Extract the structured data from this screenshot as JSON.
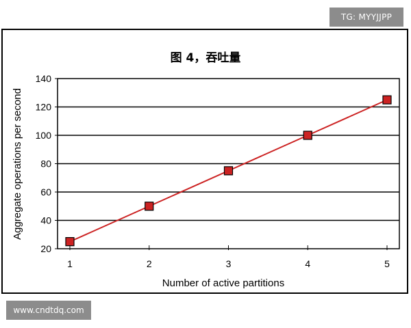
{
  "watermarks": {
    "top_right": "TG: MYYJJPP",
    "bottom_left": "www.cndtdq.com"
  },
  "chart_data": {
    "type": "line",
    "title": "图 4，吞吐量",
    "xlabel": "Number of active partitions",
    "ylabel": "Aggregate operations per second",
    "x": [
      1,
      2,
      3,
      4,
      5
    ],
    "series": [
      {
        "values": [
          25,
          50,
          75,
          100,
          125
        ],
        "color": "#cc2222",
        "marker": "square"
      }
    ],
    "xlim": [
      1,
      5
    ],
    "ylim": [
      20,
      140
    ],
    "yticks": [
      20,
      40,
      60,
      80,
      100,
      120,
      140
    ],
    "xticks": [
      1,
      2,
      3,
      4,
      5
    ],
    "grid": "horizontal",
    "legend": "none"
  }
}
